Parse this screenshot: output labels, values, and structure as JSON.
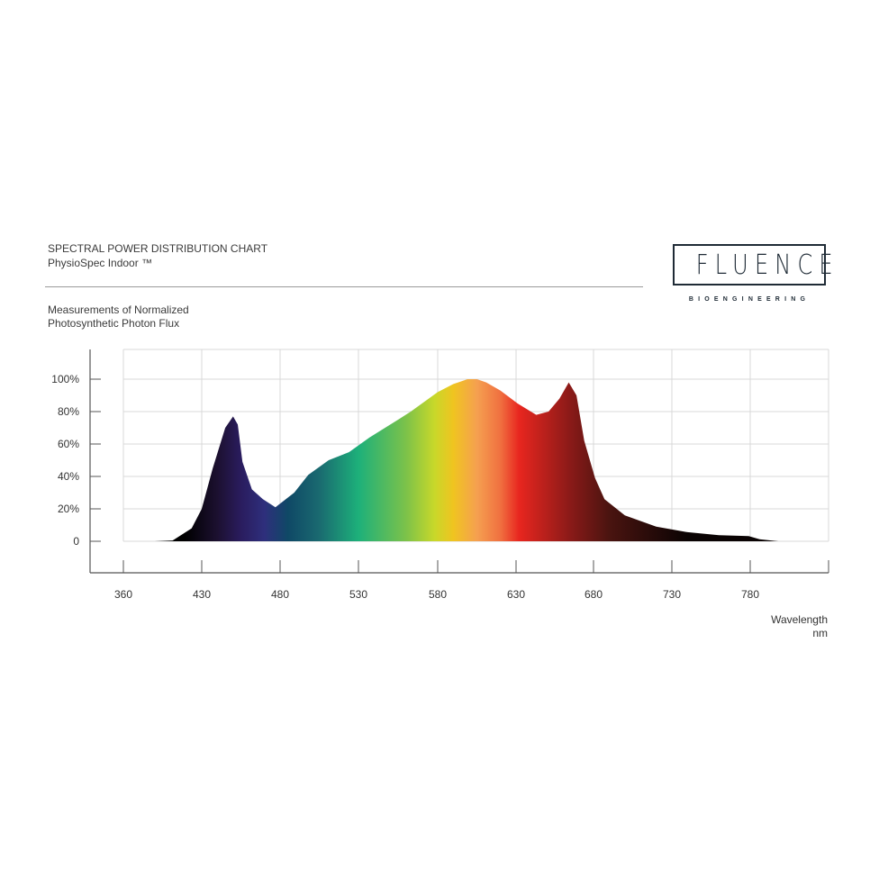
{
  "header": {
    "title": "SPECTRAL POWER DISTRIBUTION CHART",
    "subtitle": "PhysioSpec Indoor ™",
    "measure_line1": "Measurements of Normalized",
    "measure_line2": "Photosynthetic Photon Flux"
  },
  "logo": {
    "word": "FLUENCE",
    "sub": "BIOENGINEERING",
    "color": "#1f2b36"
  },
  "chart_data": {
    "type": "area",
    "title": "SPECTRAL POWER DISTRIBUTION CHART",
    "ylabel": "Measurements of Normalized Photosynthetic Photon Flux",
    "xlabel": "Wavelength",
    "xunit": "nm",
    "x_ticks": [
      360,
      430,
      480,
      530,
      580,
      630,
      680,
      730,
      780
    ],
    "x_tick_labels": [
      "360",
      "430",
      "480",
      "530",
      "580",
      "630",
      "680",
      "730",
      "780"
    ],
    "y_ticks": [
      0,
      20,
      40,
      60,
      80,
      100
    ],
    "y_tick_labels": [
      "0",
      "20%",
      "40%",
      "60%",
      "80%",
      "100%"
    ],
    "ylim": [
      0,
      100
    ],
    "xlim": [
      360,
      830
    ],
    "grid": true,
    "legend": "none",
    "series": [
      {
        "x": [
          388,
          404,
          421,
          430,
          437,
          445,
          450,
          453,
          456,
          462,
          469,
          477,
          489,
          498,
          511,
          524,
          537,
          555,
          563,
          580,
          590,
          599,
          605,
          611,
          620,
          631,
          643,
          651,
          658,
          664,
          669,
          674,
          681,
          687,
          700,
          720,
          740,
          760,
          779,
          786,
          798
        ],
        "y": [
          0,
          0.5,
          8,
          20,
          45,
          70,
          77,
          72,
          49,
          32,
          26,
          21,
          30,
          41,
          50,
          55,
          64,
          75,
          80,
          92,
          97,
          100,
          100,
          98,
          93,
          85,
          78,
          80,
          88,
          98,
          90,
          62,
          39,
          26,
          16,
          9,
          5.6,
          3.7,
          3.2,
          1.3,
          0
        ]
      }
    ],
    "fill_spectrum": [
      {
        "nm": 415,
        "color": "#000000"
      },
      {
        "nm": 440,
        "color": "#1c1030"
      },
      {
        "nm": 455,
        "color": "#2a1c5e"
      },
      {
        "nm": 470,
        "color": "#2e2f7c"
      },
      {
        "nm": 485,
        "color": "#0f4866"
      },
      {
        "nm": 505,
        "color": "#1a6a70"
      },
      {
        "nm": 530,
        "color": "#1db07a"
      },
      {
        "nm": 560,
        "color": "#7cc24a"
      },
      {
        "nm": 578,
        "color": "#c8d82a"
      },
      {
        "nm": 590,
        "color": "#f0c420"
      },
      {
        "nm": 605,
        "color": "#f5a050"
      },
      {
        "nm": 620,
        "color": "#f07040"
      },
      {
        "nm": 632,
        "color": "#e8261f"
      },
      {
        "nm": 665,
        "color": "#8a1a18"
      },
      {
        "nm": 690,
        "color": "#4a1410"
      },
      {
        "nm": 740,
        "color": "#0a0303"
      }
    ],
    "grid_color": "#d8d8d8",
    "axis_color": "#555555"
  }
}
